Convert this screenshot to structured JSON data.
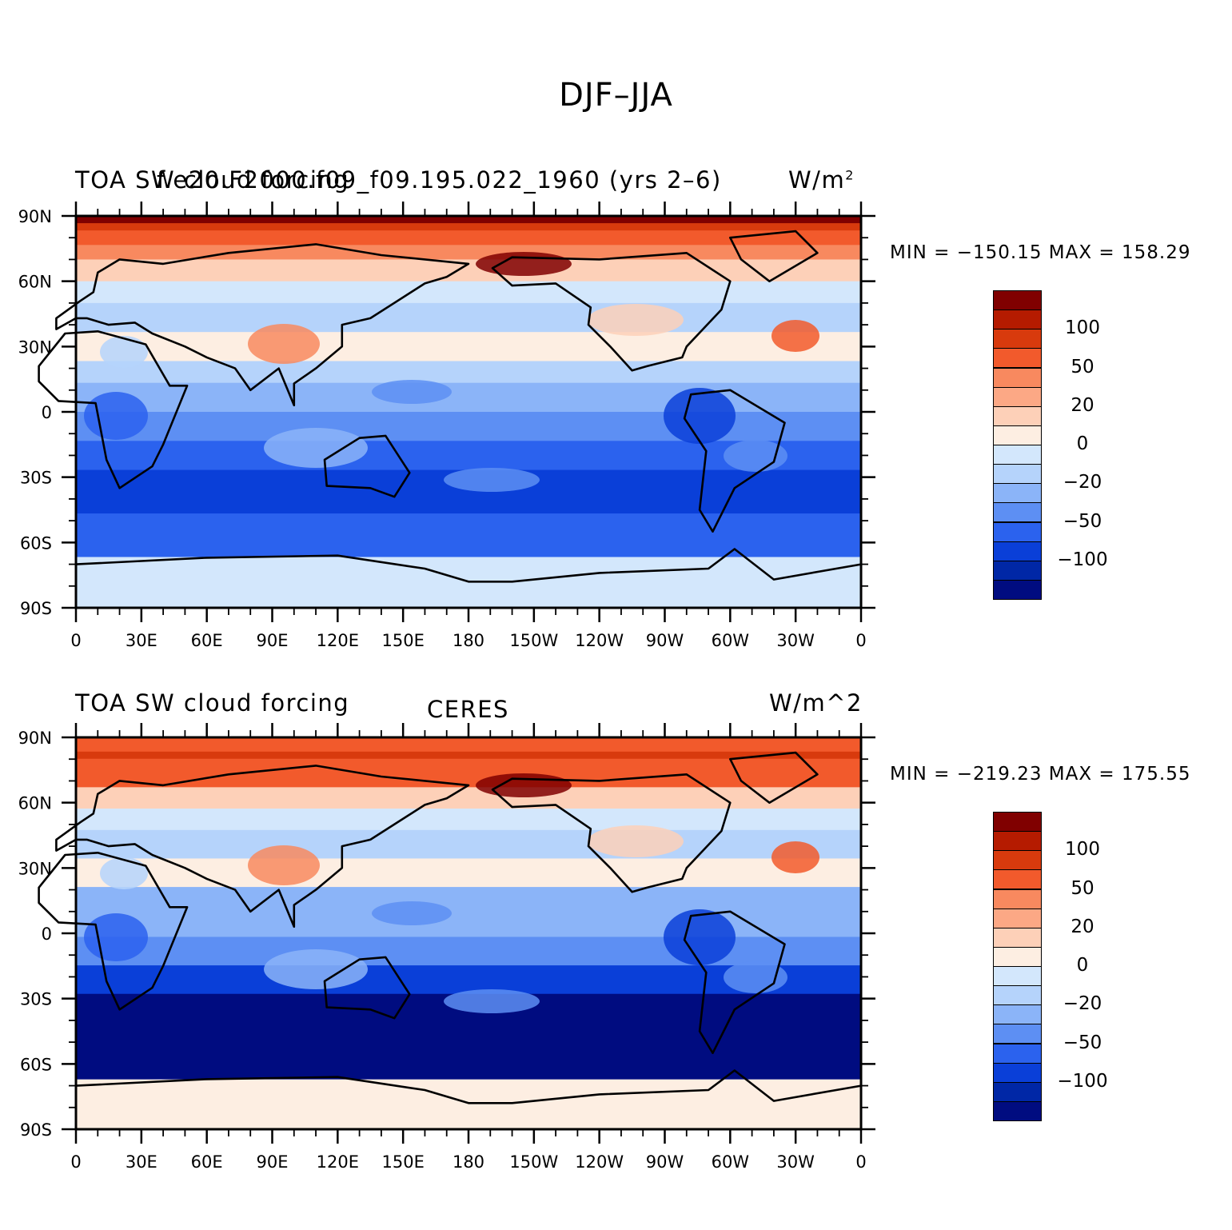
{
  "title": "DJF–JJA",
  "panels": [
    {
      "left_title": "TOA SW cloud forcing",
      "center_title": "f.e20.F2000.f09_f09.195.022_1960 (yrs 2–6)",
      "units_base": "W/m",
      "units_sup": "2",
      "minmax": "MIN = −150.15  MAX = 158.29"
    },
    {
      "left_title": "TOA SW cloud forcing",
      "center_title": "CERES",
      "units": "W/m^2",
      "minmax": "MIN = −219.23  MAX = 175.55"
    }
  ],
  "axes": {
    "lat_labels": [
      "90N",
      "60N",
      "30N",
      "0",
      "30S",
      "60S",
      "90S"
    ],
    "lon_labels": [
      "0",
      "30E",
      "60E",
      "90E",
      "120E",
      "150E",
      "180",
      "150W",
      "120W",
      "90W",
      "60W",
      "30W",
      "0"
    ]
  },
  "colorbar": {
    "labels": [
      "100",
      "50",
      "20",
      "0",
      "−20",
      "−50",
      "−100"
    ],
    "colors": [
      "#800000",
      "#b51b00",
      "#d83a0d",
      "#f25a2c",
      "#f8895f",
      "#fca885",
      "#fdd0b8",
      "#fdeee2",
      "#d3e7fc",
      "#b5d3fb",
      "#8bb4f8",
      "#5d8ff3",
      "#2b62ee",
      "#0a3fd8",
      "#0027a6",
      "#000c80"
    ]
  }
}
